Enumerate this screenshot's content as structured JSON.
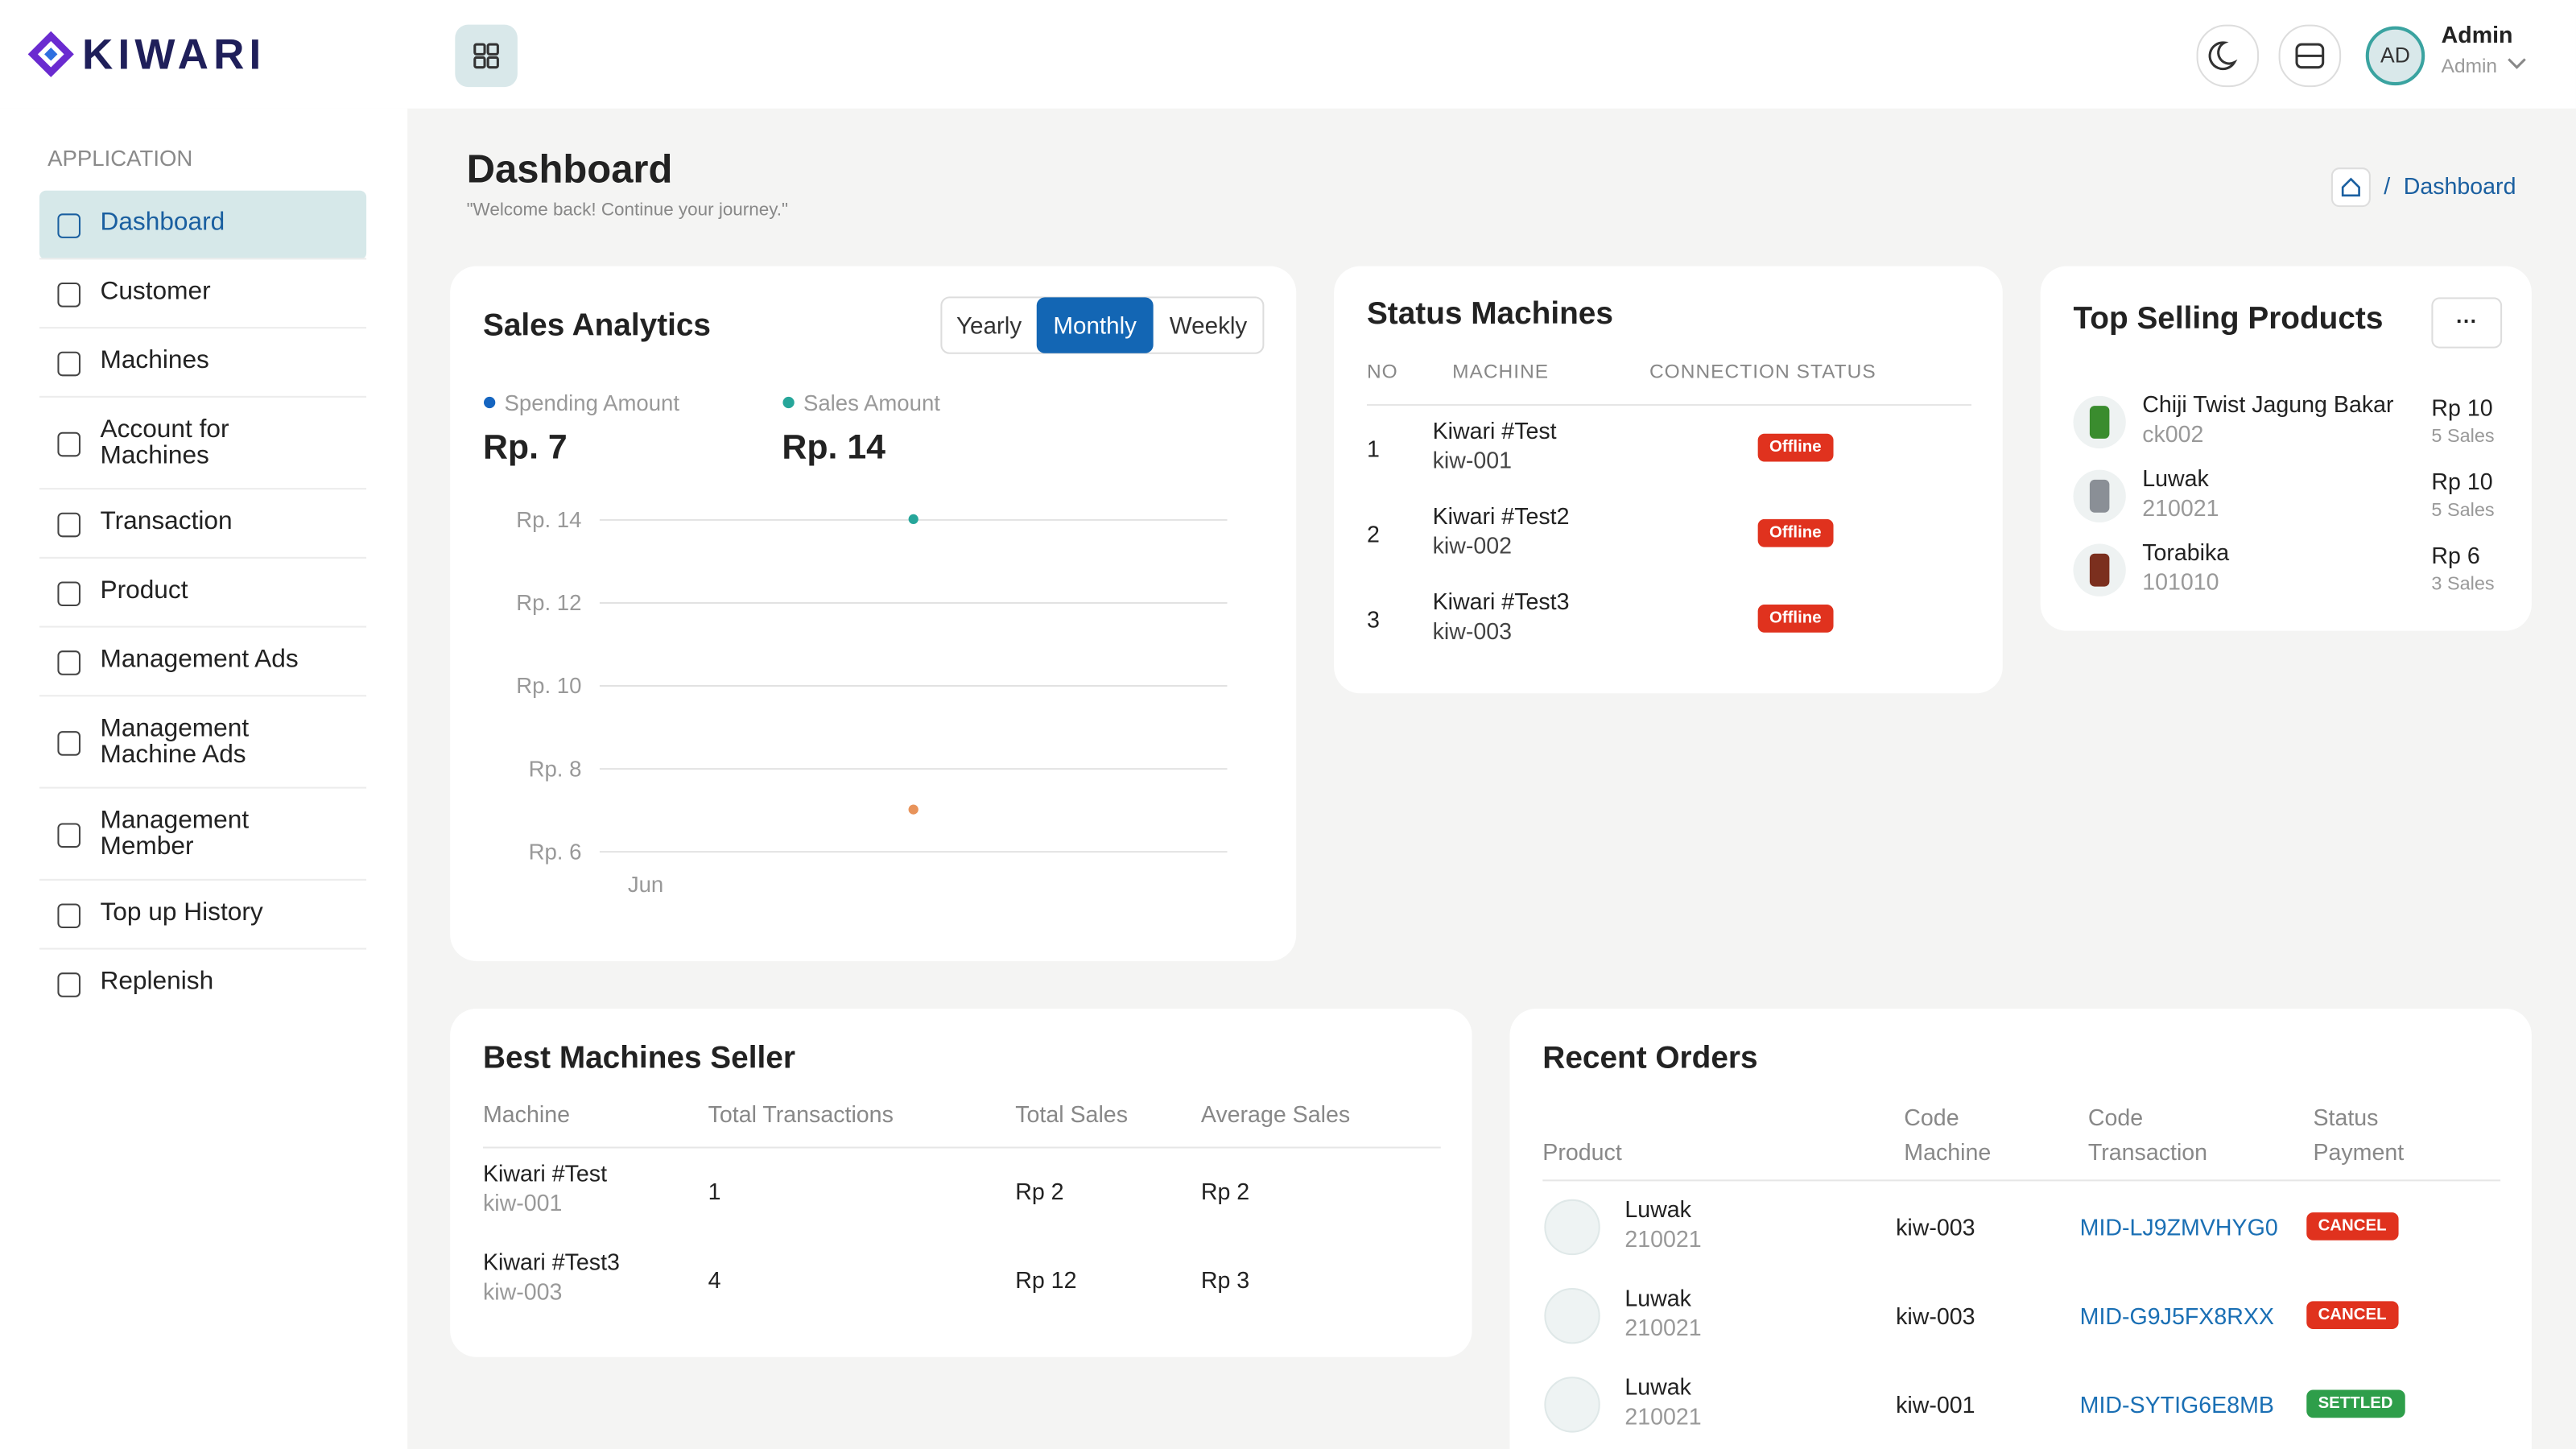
{
  "brand": "KIWARI",
  "header": {
    "user_name": "Admin",
    "user_role": "Admin",
    "avatar": "AD"
  },
  "sidebar": {
    "section": "APPLICATION",
    "active": 0,
    "items": [
      "Dashboard",
      "Customer",
      "Machines",
      "Account for Machines",
      "Transaction",
      "Product",
      "Management Ads",
      "Management Machine Ads",
      "Management Member",
      "Top up History",
      "Replenish"
    ]
  },
  "page": {
    "title": "Dashboard",
    "subtitle": "\"Welcome back! Continue your journey.\"",
    "breadcrumb": "Dashboard"
  },
  "chart_data": {
    "type": "scatter",
    "title": "Sales Analytics",
    "tabs": [
      "Yearly",
      "Monthly",
      "Weekly"
    ],
    "active_tab": 1,
    "categories": [
      "Jun"
    ],
    "series": [
      {
        "name": "Spending Amount",
        "color": "#1565c0",
        "marker_color": "#e8935a",
        "values": [
          7
        ],
        "value_labels": [
          "Rp. 7"
        ]
      },
      {
        "name": "Sales Amount",
        "color": "#26a69a",
        "marker_color": "#26a69a",
        "values": [
          14
        ],
        "value_labels": [
          "Rp. 14"
        ]
      }
    ],
    "ylim": [
      6,
      14
    ],
    "yticks": [
      {
        "value": 6,
        "label": "Rp. 6"
      },
      {
        "value": 8,
        "label": "Rp. 8"
      },
      {
        "value": 10,
        "label": "Rp. 10"
      },
      {
        "value": 12,
        "label": "Rp. 12"
      },
      {
        "value": 14,
        "label": "Rp. 14"
      }
    ],
    "grid": true
  },
  "status_machines": {
    "title": "Status Machines",
    "columns": [
      "NO",
      "MACHINE",
      "CONNECTION STATUS"
    ],
    "rows": [
      {
        "no": 1,
        "name": "Kiwari #Test",
        "code": "kiw-001",
        "status": "Offline"
      },
      {
        "no": 2,
        "name": "Kiwari #Test2",
        "code": "kiw-002",
        "status": "Offline"
      },
      {
        "no": 3,
        "name": "Kiwari #Test3",
        "code": "kiw-003",
        "status": "Offline"
      }
    ]
  },
  "top_selling": {
    "title": "Top Selling Products",
    "menu": "···",
    "items": [
      {
        "name": "Chiji Twist Jagung Bakar",
        "code": "ck002",
        "price": "Rp 10",
        "sales": "5 Sales"
      },
      {
        "name": "Luwak",
        "code": "210021",
        "price": "Rp 10",
        "sales": "5 Sales"
      },
      {
        "name": "Torabika",
        "code": "101010",
        "price": "Rp 6",
        "sales": "3 Sales"
      }
    ]
  },
  "best_machines": {
    "title": "Best Machines Seller",
    "columns": [
      "Machine",
      "Total Transactions",
      "Total Sales",
      "Average Sales"
    ],
    "rows": [
      {
        "machine": "Kiwari #Test",
        "code": "kiw-001",
        "transactions": 1,
        "total": "Rp 2",
        "average": "Rp 2"
      },
      {
        "machine": "Kiwari #Test3",
        "code": "kiw-003",
        "transactions": 4,
        "total": "Rp 12",
        "average": "Rp 3"
      }
    ]
  },
  "recent_orders": {
    "title": "Recent Orders",
    "columns": [
      "Product",
      "Code Machine",
      "Code Transaction",
      "Status Payment"
    ],
    "rows": [
      {
        "product": "Luwak",
        "code": "210021",
        "machine": "kiw-003",
        "transaction": "MID-LJ9ZMVHYG0",
        "status": "CANCEL",
        "color": "#e0321e"
      },
      {
        "product": "Luwak",
        "code": "210021",
        "machine": "kiw-003",
        "transaction": "MID-G9J5FX8RXX",
        "status": "CANCEL",
        "color": "#e0321e"
      },
      {
        "product": "Luwak",
        "code": "210021",
        "machine": "kiw-001",
        "transaction": "MID-SYTIG6E8MB",
        "status": "SETTLED",
        "color": "#2e9e4a"
      }
    ]
  }
}
